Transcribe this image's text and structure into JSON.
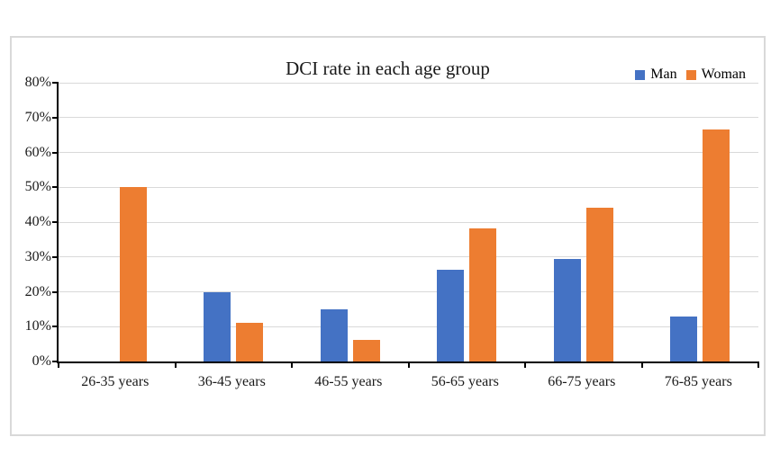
{
  "chart_data": {
    "type": "bar",
    "title": "DCI rate in each age group",
    "categories": [
      "26-35 years",
      "36-45 years",
      "46-55 years",
      "56-65 years",
      "66-75 years",
      "76-85 years"
    ],
    "series": [
      {
        "name": "Man",
        "color": "#4472C4",
        "values": [
          0,
          20,
          15,
          26.3,
          29.4,
          13
        ]
      },
      {
        "name": "Woman",
        "color": "#ED7D31",
        "values": [
          50,
          11.1,
          6.3,
          38.2,
          44.1,
          66.7
        ]
      }
    ],
    "y_axis": {
      "min": 0,
      "max": 80,
      "step": 10,
      "tick_labels": [
        "0%",
        "10%",
        "20%",
        "30%",
        "40%",
        "50%",
        "60%",
        "70%",
        "80%"
      ]
    },
    "xlabel": "",
    "ylabel": "",
    "grid": true,
    "legend_position": "top-right"
  },
  "colors": {
    "grid": "#D9D9D9",
    "axis": "#000000",
    "frame_border": "#D9D9D9",
    "background": "#FFFFFF"
  }
}
